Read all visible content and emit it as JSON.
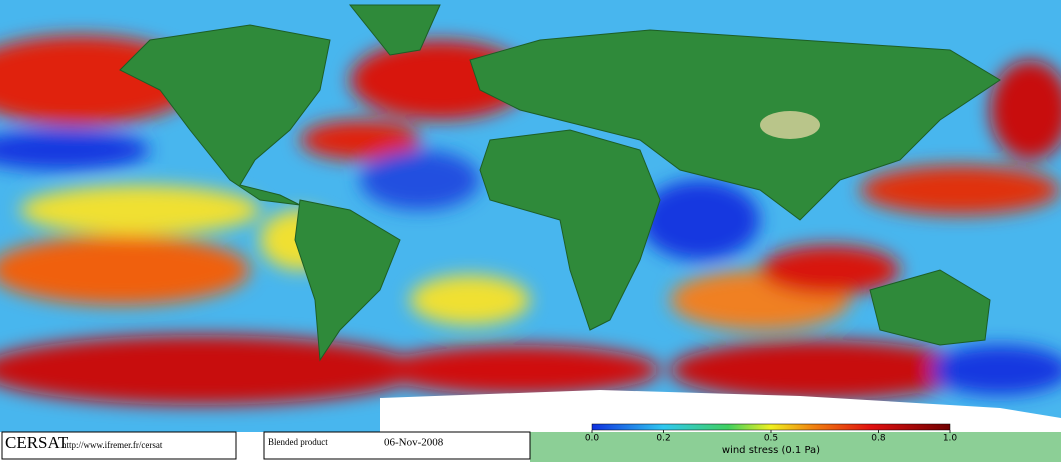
{
  "footer": {
    "logo": "CERSAT",
    "url": "http://www.ifremer.fr/cersat",
    "product": "Blended product",
    "date": "06-Nov-2008"
  },
  "colorbar": {
    "label": "wind stress (0.1 Pa)",
    "lim": [
      0,
      1
    ],
    "ticks": [
      {
        "value": 0,
        "label": "0.0"
      },
      0.2,
      0.5,
      0.8,
      {
        "value": 1,
        "label": "1.0"
      }
    ]
  }
}
